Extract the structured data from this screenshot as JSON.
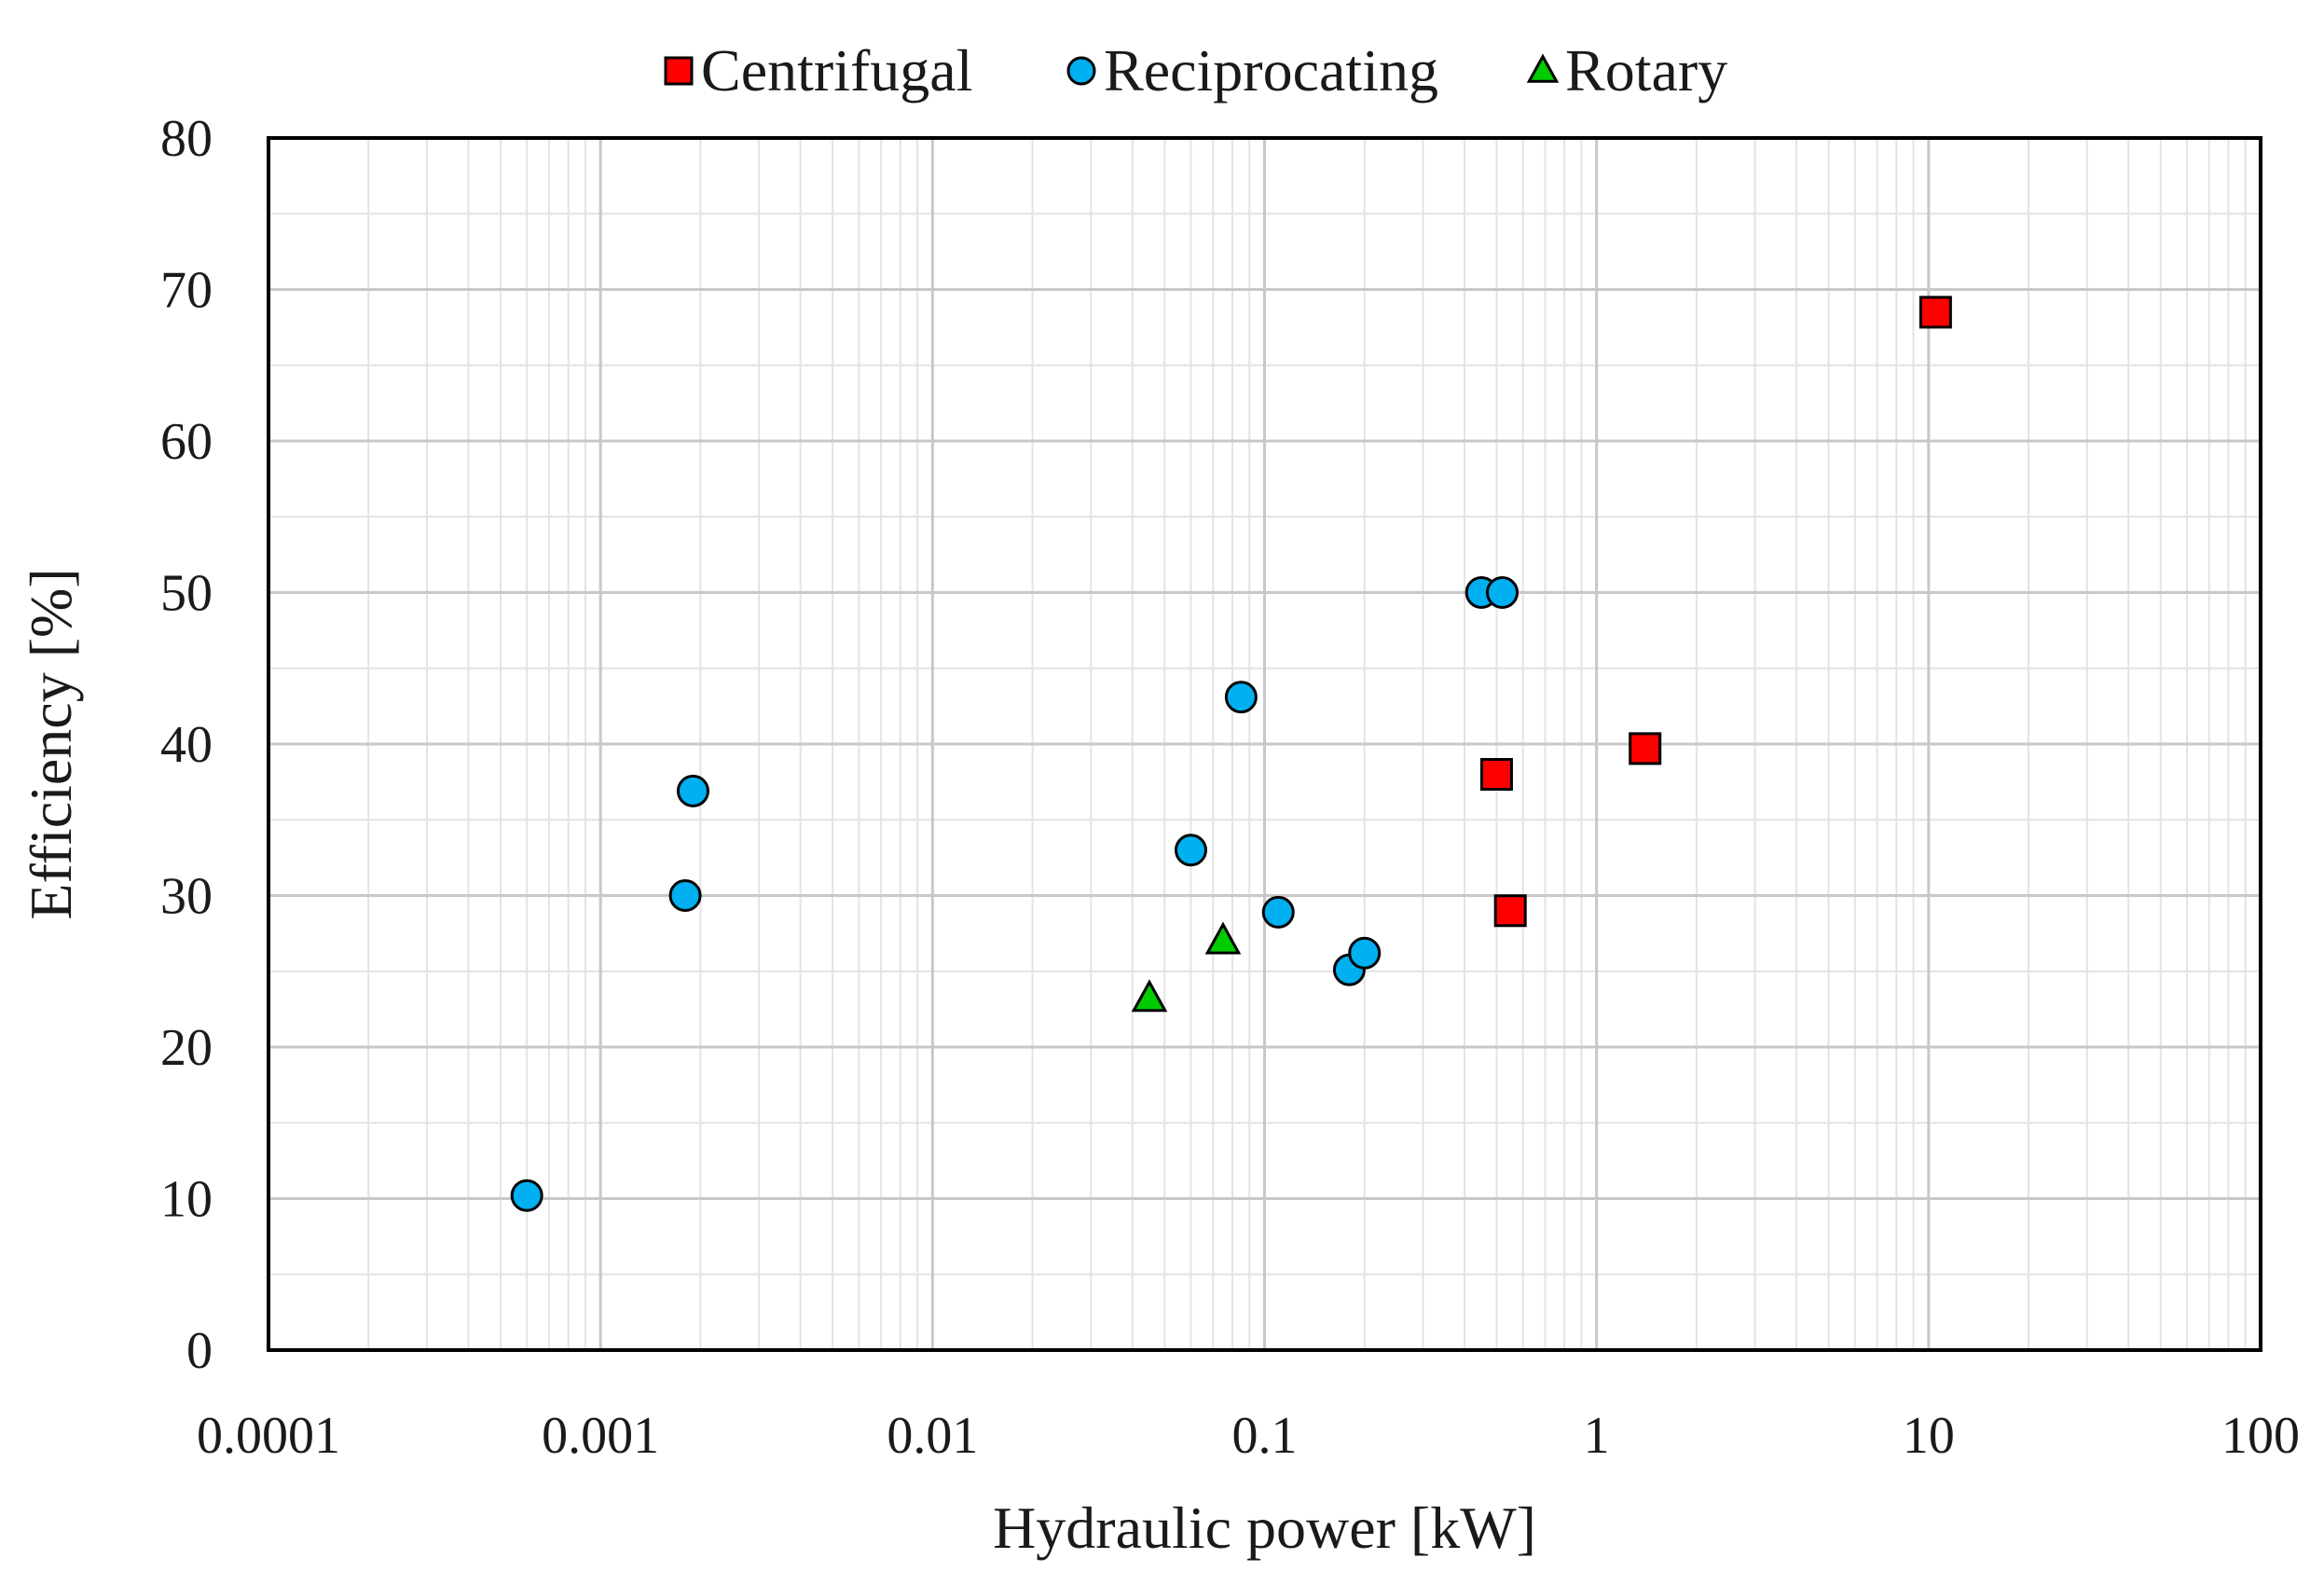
{
  "chart_data": {
    "type": "scatter",
    "xlabel": "Hydraulic power [kW]",
    "ylabel": "Efficiency  [%]",
    "x_scale": "log",
    "xlim": [
      0.0001,
      100
    ],
    "ylim": [
      0,
      80
    ],
    "x_ticks": [
      "0.0001",
      "0.001",
      "0.01",
      "0.1",
      "1",
      "10",
      "100"
    ],
    "y_ticks": [
      "0",
      "10",
      "20",
      "30",
      "40",
      "50",
      "60",
      "70",
      "80"
    ],
    "grid": true,
    "legend_position": "top",
    "series": [
      {
        "name": "Centrifugal",
        "marker": "square",
        "color": "#ff0000",
        "points": [
          {
            "x": 0.5,
            "y": 38
          },
          {
            "x": 0.55,
            "y": 29
          },
          {
            "x": 1.4,
            "y": 39.7
          },
          {
            "x": 10.5,
            "y": 68.5
          }
        ]
      },
      {
        "name": "Reciprocating",
        "marker": "circle",
        "color": "#00b0f0",
        "points": [
          {
            "x": 0.0006,
            "y": 10.2
          },
          {
            "x": 0.0018,
            "y": 30
          },
          {
            "x": 0.0019,
            "y": 36.9
          },
          {
            "x": 0.06,
            "y": 33
          },
          {
            "x": 0.085,
            "y": 43.1
          },
          {
            "x": 0.11,
            "y": 28.9
          },
          {
            "x": 0.18,
            "y": 25.1
          },
          {
            "x": 0.2,
            "y": 26.2
          },
          {
            "x": 0.45,
            "y": 50
          },
          {
            "x": 0.52,
            "y": 50
          }
        ]
      },
      {
        "name": "Rotary",
        "marker": "triangle",
        "color": "#00cc00",
        "points": [
          {
            "x": 0.045,
            "y": 23.2
          },
          {
            "x": 0.075,
            "y": 27
          }
        ]
      }
    ]
  }
}
